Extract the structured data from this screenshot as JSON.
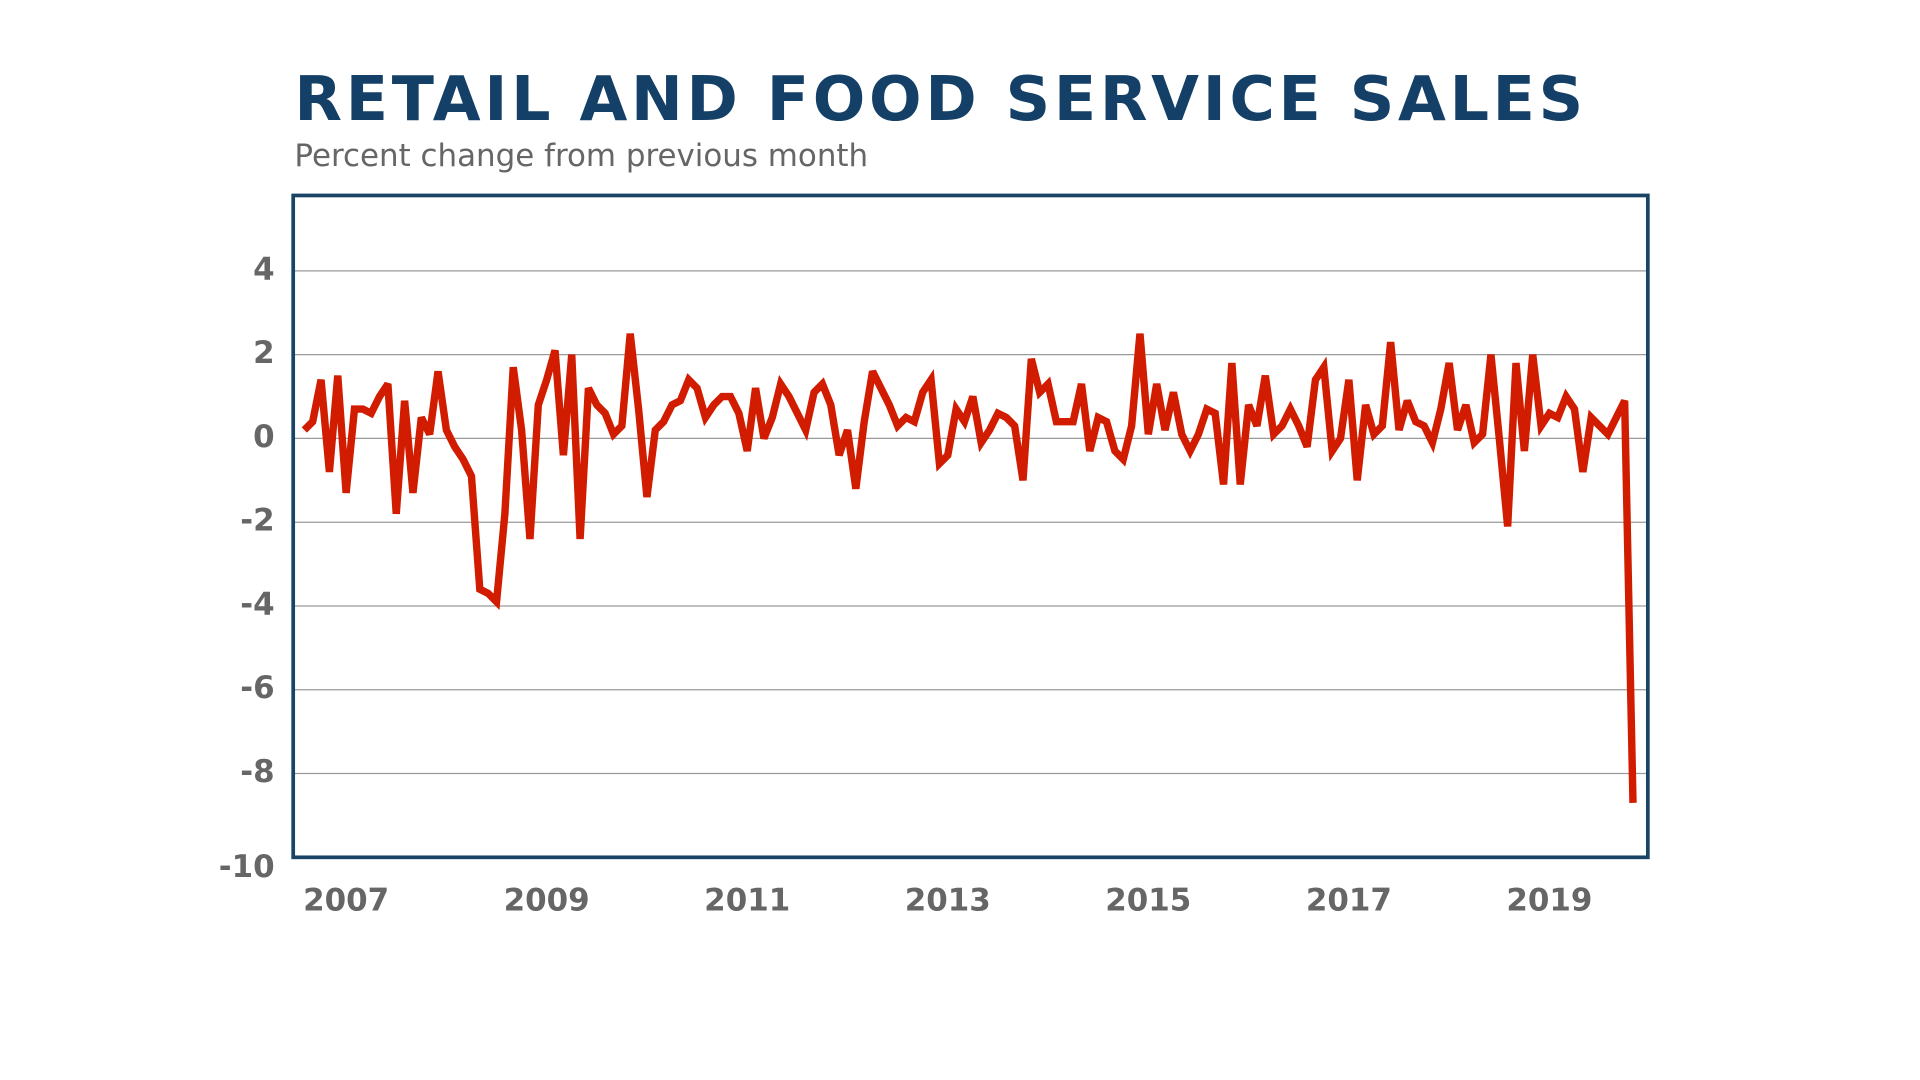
{
  "chart_data": {
    "type": "line",
    "title": "RETAIL AND FOOD SERVICE SALES",
    "subtitle": "Percent change from previous month",
    "categories": [
      null,
      null,
      null,
      null,
      null,
      "2007",
      null,
      null,
      null,
      null,
      null,
      null,
      null,
      null,
      null,
      null,
      null,
      null,
      null,
      null,
      null,
      null,
      null,
      null,
      null,
      null,
      null,
      null,
      null,
      "2009",
      null,
      null,
      null,
      null,
      null,
      null,
      null,
      null,
      null,
      null,
      null,
      null,
      null,
      null,
      null,
      null,
      null,
      null,
      null,
      null,
      null,
      null,
      null,
      "2011",
      null,
      null,
      null,
      null,
      null,
      null,
      null,
      null,
      null,
      null,
      null,
      null,
      null,
      null,
      null,
      null,
      null,
      null,
      null,
      null,
      null,
      null,
      null,
      "2013",
      null,
      null,
      null,
      null,
      null,
      null,
      null,
      null,
      null,
      null,
      null,
      null,
      null,
      null,
      null,
      null,
      null,
      null,
      null,
      null,
      null,
      null,
      null,
      "2015",
      null,
      null,
      null,
      null,
      null,
      null,
      null,
      null,
      null,
      null,
      null,
      null,
      null,
      null,
      null,
      null,
      null,
      null,
      null,
      null,
      null,
      null,
      null,
      "2017",
      null,
      null,
      null,
      null,
      null,
      null,
      null,
      null,
      null,
      null,
      null,
      null,
      null,
      null,
      null,
      null,
      null,
      null,
      null,
      null,
      null,
      null,
      null,
      "2019",
      null,
      null,
      null,
      null,
      null,
      null,
      null,
      null,
      null,
      null
    ],
    "values": [
      0.2,
      0.4,
      1.4,
      -0.8,
      1.5,
      -1.3,
      0.7,
      0.7,
      0.6,
      1.0,
      1.3,
      -1.8,
      0.9,
      -1.3,
      0.5,
      0.1,
      1.6,
      0.2,
      -0.2,
      -0.5,
      -0.9,
      -3.6,
      -3.7,
      -3.9,
      -1.8,
      1.7,
      0.2,
      -2.4,
      0.8,
      1.4,
      2.1,
      -0.4,
      2.0,
      -2.4,
      1.2,
      0.8,
      0.6,
      0.1,
      0.3,
      2.5,
      0.7,
      -1.4,
      0.2,
      0.4,
      0.8,
      0.9,
      1.4,
      1.2,
      0.5,
      0.8,
      1.0,
      1.0,
      0.6,
      -0.3,
      1.2,
      0.0,
      0.5,
      1.3,
      1.0,
      0.6,
      0.2,
      1.1,
      1.3,
      0.8,
      -0.4,
      0.2,
      -1.2,
      0.4,
      1.6,
      1.2,
      0.8,
      0.3,
      0.5,
      0.4,
      1.1,
      1.4,
      -0.6,
      -0.4,
      0.7,
      0.4,
      1.0,
      -0.1,
      0.2,
      0.6,
      0.5,
      0.3,
      -1.0,
      1.9,
      1.1,
      1.3,
      0.4,
      0.4,
      0.4,
      1.3,
      -0.3,
      0.5,
      0.4,
      -0.3,
      -0.5,
      0.3,
      2.5,
      0.1,
      1.3,
      0.2,
      1.1,
      0.1,
      -0.3,
      0.1,
      0.7,
      0.6,
      -1.1,
      1.8,
      -1.1,
      0.8,
      0.3,
      1.5,
      0.1,
      0.3,
      0.7,
      0.3,
      -0.2,
      1.4,
      1.7,
      -0.3,
      0.0,
      1.4,
      -1.0,
      0.8,
      0.1,
      0.3,
      2.3,
      0.2,
      0.9,
      0.4,
      0.3,
      -0.1,
      0.7,
      1.8,
      0.2,
      0.8,
      -0.1,
      0.1,
      2.0,
      0.0,
      -2.1,
      1.8,
      -0.3,
      2.0,
      0.3,
      0.6,
      0.5,
      1.0,
      0.7,
      -0.8,
      0.5,
      0.3,
      0.1,
      0.5,
      0.9,
      -8.7
    ],
    "color": "#d11c00",
    "ylim": [
      -10,
      5.8
    ],
    "yticks": [
      -10,
      -8,
      -6,
      -4,
      -2,
      0,
      2,
      4
    ],
    "grid": true
  }
}
